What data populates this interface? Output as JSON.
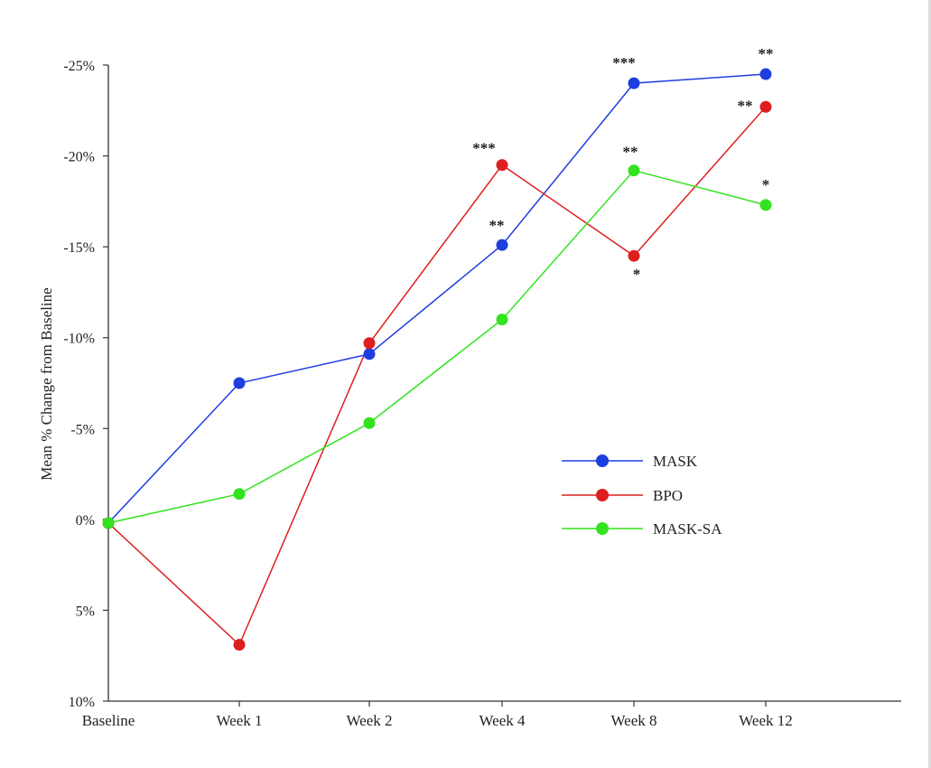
{
  "chart_data": {
    "type": "line",
    "title": "",
    "xlabel": "",
    "ylabel": "Mean % Change from Baseline",
    "categories": [
      "Baseline",
      "Week 1",
      "Week 2",
      "Week 4",
      "Week 8",
      "Week 12"
    ],
    "y_ticks": [
      "-25%",
      "-20%",
      "-15%",
      "-10%",
      "-5%",
      "0%",
      "5%",
      "10%"
    ],
    "y_tick_values": [
      -25,
      -20,
      -15,
      -10,
      -5,
      0,
      5,
      10
    ],
    "ylim": [
      -25,
      10
    ],
    "y_axis_inverted": true,
    "grid": false,
    "legend_position": "right-center",
    "series": [
      {
        "name": "MASK",
        "color": "#1f3ee0",
        "values": [
          0.2,
          -7.5,
          -9.1,
          -15.1,
          -24.0,
          -24.5
        ],
        "significance": [
          "",
          "",
          "",
          "**",
          "***",
          "**"
        ]
      },
      {
        "name": "BPO",
        "color": "#dd1f1f",
        "values": [
          0.2,
          6.9,
          -9.7,
          -19.5,
          -14.5,
          -22.7
        ],
        "significance": [
          "",
          "",
          "",
          "***",
          "*",
          "**"
        ]
      },
      {
        "name": "MASK-SA",
        "color": "#33e31f",
        "values": [
          0.2,
          -1.4,
          -5.3,
          -11.0,
          -19.2,
          -17.3
        ],
        "significance": [
          "",
          "",
          "",
          "",
          "**",
          "*"
        ]
      }
    ]
  }
}
